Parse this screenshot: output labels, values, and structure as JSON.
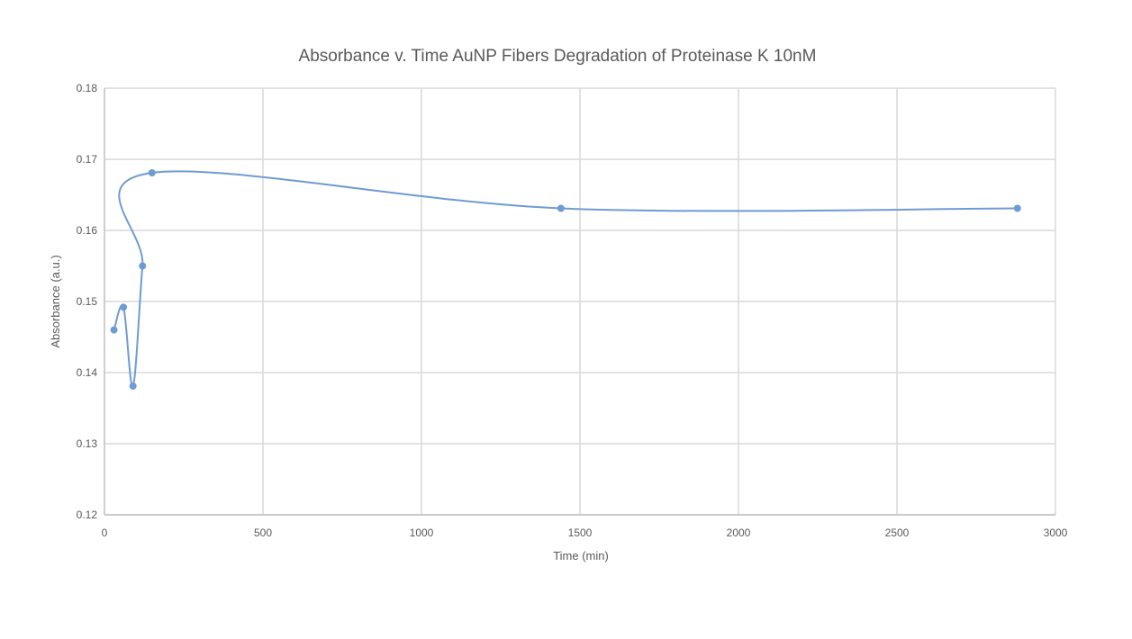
{
  "chart_data": {
    "type": "scatter",
    "title": "Absorbance v. Time AuNP Fibers Degradation of Proteinase K 10nM",
    "xlabel": "Time (min)",
    "ylabel": "Absorbance (a.u.)",
    "xlim": [
      0,
      3000
    ],
    "ylim": [
      0.12,
      0.18
    ],
    "xticks": [
      "0",
      "500",
      "1000",
      "1500",
      "2000",
      "2500",
      "3000"
    ],
    "yticks": [
      "0.12",
      "0.13",
      "0.14",
      "0.15",
      "0.16",
      "0.17",
      "0.18"
    ],
    "grid": true,
    "smoothed_line": true,
    "series": [
      {
        "name": "Absorbance",
        "color": "#6f9bd3",
        "x": [
          30,
          60,
          90,
          120,
          150,
          1440,
          2880
        ],
        "y": [
          0.146,
          0.1492,
          0.1381,
          0.155,
          0.1681,
          0.1631,
          0.1631
        ]
      }
    ]
  }
}
